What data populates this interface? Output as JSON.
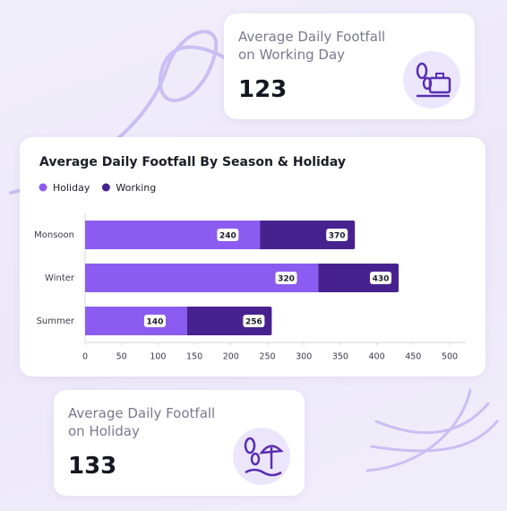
{
  "cards": [
    {
      "title": "Average Daily Footfall on Working Day",
      "value": "123"
    },
    {
      "title": "Average Daily Footfall on Holiday",
      "value": "133"
    }
  ],
  "chart_data": {
    "type": "bar",
    "orientation": "horizontal",
    "title": "Average Daily Footfall By Season & Holiday",
    "categories": [
      "Monsoon",
      "Winter",
      "Summer"
    ],
    "series": [
      {
        "name": "Holiday",
        "color": "#8c5cf0",
        "values": [
          240,
          320,
          140
        ]
      },
      {
        "name": "Working",
        "color": "#47228f",
        "values": [
          370,
          430,
          256
        ]
      }
    ],
    "xlim": [
      0,
      500
    ],
    "xticks": [
      0,
      50,
      100,
      150,
      200,
      250,
      300,
      350,
      400,
      450,
      500
    ],
    "legend": "top-left"
  }
}
